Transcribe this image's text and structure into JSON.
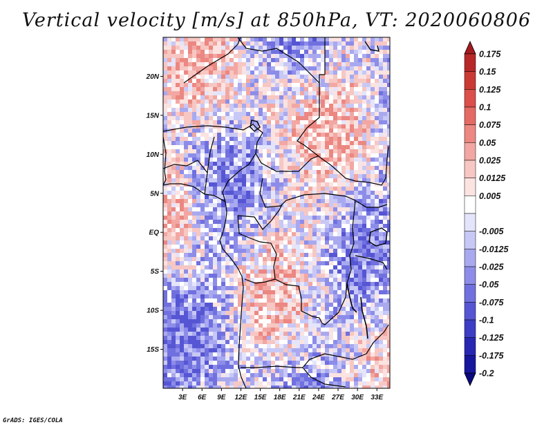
{
  "title": "Vertical velocity [m/s] at 850hPa, VT: 2020060806",
  "credit": "GrADS: IGES/COLA",
  "map": {
    "lon_range": [
      0,
      35
    ],
    "lat_range": [
      -20,
      25
    ],
    "lat_ticks": [
      {
        "value": 20,
        "label": "20N"
      },
      {
        "value": 15,
        "label": "15N"
      },
      {
        "value": 10,
        "label": "10N"
      },
      {
        "value": 5,
        "label": "5N"
      },
      {
        "value": 0,
        "label": "EQ"
      },
      {
        "value": -5,
        "label": "5S"
      },
      {
        "value": -10,
        "label": "10S"
      },
      {
        "value": -15,
        "label": "15S"
      }
    ],
    "lon_ticks": [
      {
        "value": 3,
        "label": "3E"
      },
      {
        "value": 6,
        "label": "6E"
      },
      {
        "value": 9,
        "label": "9E"
      },
      {
        "value": 12,
        "label": "12E"
      },
      {
        "value": 15,
        "label": "15E"
      },
      {
        "value": 18,
        "label": "18E"
      },
      {
        "value": 21,
        "label": "21E"
      },
      {
        "value": 24,
        "label": "24E"
      },
      {
        "value": 27,
        "label": "27E"
      },
      {
        "value": 30,
        "label": "30E"
      },
      {
        "value": 33,
        "label": "33E"
      }
    ]
  },
  "colorbar": {
    "bins": [
      {
        "label": "0.175",
        "color": "#a31a1f"
      },
      {
        "label": "0.15",
        "color": "#b82828"
      },
      {
        "label": "0.125",
        "color": "#cc3a36"
      },
      {
        "label": "0.1",
        "color": "#dc4f4a"
      },
      {
        "label": "0.075",
        "color": "#e46a63"
      },
      {
        "label": "0.05",
        "color": "#ec8781"
      },
      {
        "label": "0.025",
        "color": "#f2a7a2"
      },
      {
        "label": "0.0125",
        "color": "#f7c7c3"
      },
      {
        "label": "0.005",
        "color": "#fbe3e1"
      },
      {
        "label": "",
        "color": "#ffffff"
      },
      {
        "label": "-0.005",
        "color": "#e4e4fb"
      },
      {
        "label": "-0.0125",
        "color": "#c8c8f6"
      },
      {
        "label": "-0.025",
        "color": "#a9a9f0"
      },
      {
        "label": "-0.05",
        "color": "#8d8de9"
      },
      {
        "label": "-0.075",
        "color": "#7070df"
      },
      {
        "label": "-0.1",
        "color": "#5656d4"
      },
      {
        "label": "-0.125",
        "color": "#3d3dc6"
      },
      {
        "label": "-0.175",
        "color": "#2727b4"
      },
      {
        "label": "-0.2",
        "color": "#16169e"
      },
      {
        "label": "",
        "color": "#0a0a7e"
      }
    ]
  }
}
